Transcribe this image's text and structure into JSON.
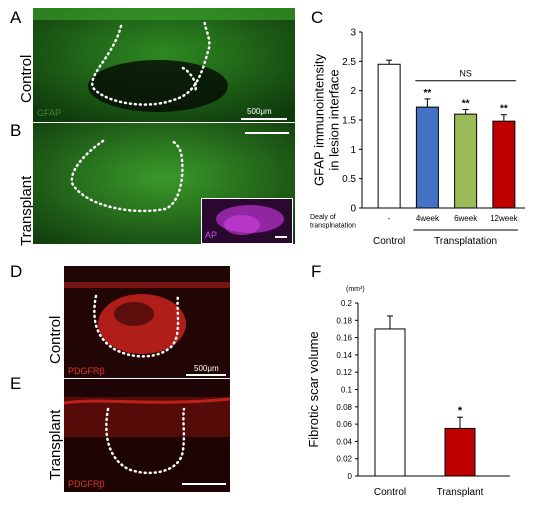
{
  "panels": {
    "A": {
      "letter": "A",
      "row_label": "Control",
      "stain": "GFAP",
      "scale": "500μm"
    },
    "B": {
      "letter": "B",
      "row_label": "Transplant",
      "inset_stain": "AP"
    },
    "C": {
      "letter": "C"
    },
    "D": {
      "letter": "D",
      "row_label": "Control",
      "stain": "PDGFRβ",
      "scale": "500μm"
    },
    "E": {
      "letter": "E",
      "row_label": "Transplant",
      "stain": "PDGFRβ"
    },
    "F": {
      "letter": "F"
    }
  },
  "colors": {
    "white_bar": "#ffffff",
    "blue": "#4472c4",
    "green": "#9bbb59",
    "red": "#c00000",
    "gfap": "#2fa82f",
    "pdgfr": "#d8261c",
    "ap": "#b430c8"
  },
  "chart_data": [
    {
      "type": "bar",
      "categories": [
        "-",
        "4week",
        "6week",
        "12week"
      ],
      "values": [
        2.45,
        1.72,
        1.6,
        1.48
      ],
      "errors": [
        0.07,
        0.14,
        0.08,
        0.11
      ],
      "significance": [
        "",
        "**",
        "**",
        "**"
      ],
      "ylabel": "GFAP immunointensity in lesion interface",
      "ylim": [
        0,
        3
      ],
      "yticks": [
        "0",
        "0.5",
        "1",
        "1.5",
        "2",
        "2.5",
        "3"
      ],
      "row_label": "Dealy of transplnatation",
      "group_labels": [
        "Control",
        "Transplatation"
      ],
      "ns_label": "NS"
    },
    {
      "type": "bar",
      "categories": [
        "Control",
        "Transplant"
      ],
      "values": [
        0.17,
        0.055
      ],
      "errors": [
        0.015,
        0.013
      ],
      "significance": [
        "",
        "*"
      ],
      "ylabel": "Fibrotic scar volume",
      "unit": "(mm³)",
      "ylim": [
        0,
        0.2
      ],
      "yticks": [
        "0",
        "0.02",
        "0.04",
        "0.06",
        "0.08",
        "0.1",
        "0.12",
        "0.14",
        "0.16",
        "0.18",
        "0.2"
      ]
    }
  ]
}
